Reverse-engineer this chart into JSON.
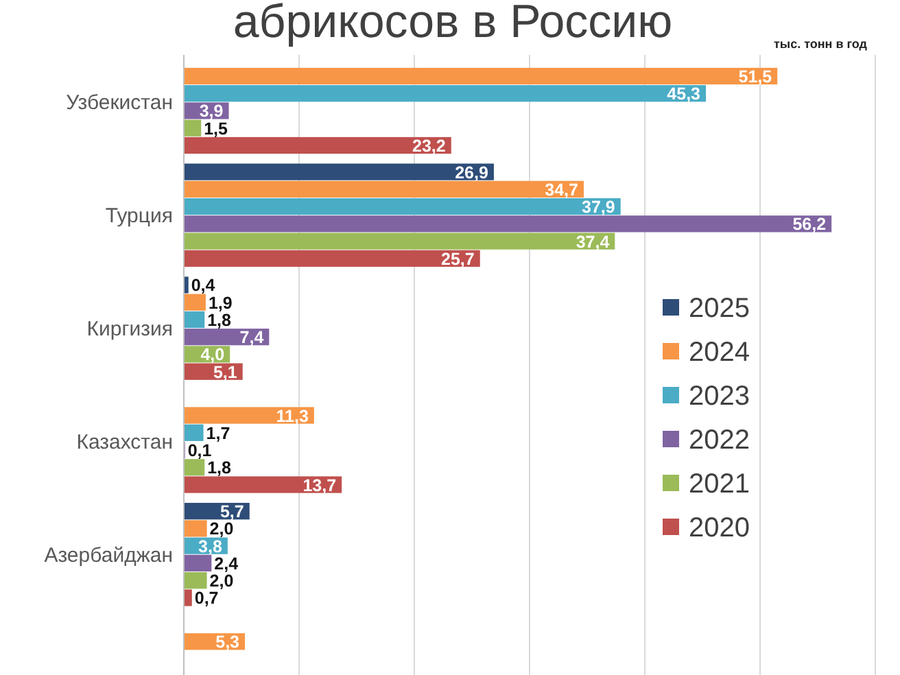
{
  "chart_data": {
    "type": "bar",
    "orientation": "horizontal",
    "title": "абрикосов в Россию",
    "subtitle": "тыс. тонн в год",
    "categories": [
      "Узбекистан",
      "Турция",
      "Киргизия",
      "Казахстан",
      "Азербайджан",
      null
    ],
    "series": [
      {
        "name": "2025",
        "color": "#2e4d78",
        "values": [
          null,
          26.9,
          0.4,
          null,
          5.7,
          null
        ],
        "value_labels": [
          null,
          "26,9",
          "0,4",
          null,
          "5,7",
          null
        ]
      },
      {
        "name": "2024",
        "color": "#f79646",
        "values": [
          51.5,
          34.7,
          1.9,
          11.3,
          2.0,
          5.3
        ],
        "value_labels": [
          "51,5",
          "34,7",
          "1,9",
          "11,3",
          "2,0",
          "5,3"
        ]
      },
      {
        "name": "2023",
        "color": "#4bacc6",
        "values": [
          45.3,
          37.9,
          1.8,
          1.7,
          3.8,
          null
        ],
        "value_labels": [
          "45,3",
          "37,9",
          "1,8",
          "1,7",
          "3,8",
          null
        ]
      },
      {
        "name": "2022",
        "color": "#8064a2",
        "values": [
          3.9,
          56.2,
          7.4,
          0.1,
          2.4,
          null
        ],
        "value_labels": [
          "3,9",
          "56,2",
          "7,4",
          "0,1",
          "2,4",
          null
        ]
      },
      {
        "name": "2021",
        "color": "#9bbb59",
        "values": [
          1.5,
          37.4,
          4.0,
          1.8,
          2.0,
          null
        ],
        "value_labels": [
          "1,5",
          "37,4",
          "4,0",
          "1,8",
          "2,0",
          null
        ]
      },
      {
        "name": "2020",
        "color": "#c0504d",
        "values": [
          23.2,
          25.7,
          5.1,
          13.7,
          0.7,
          null
        ],
        "value_labels": [
          "23,2",
          "25,7",
          "5,1",
          "13,7",
          "0,7",
          null
        ]
      }
    ],
    "xlim": [
      0,
      60
    ],
    "xticks": [
      {
        "value": 0,
        "label": null
      },
      {
        "value": 10,
        "label": null
      },
      {
        "value": 20,
        "label": null
      },
      {
        "value": 30,
        "label": null
      },
      {
        "value": 40,
        "label": null
      },
      {
        "value": 50,
        "label": null
      },
      {
        "value": 60,
        "label": null
      }
    ],
    "tick_labels": "y",
    "grid": "x",
    "legend": "right"
  }
}
